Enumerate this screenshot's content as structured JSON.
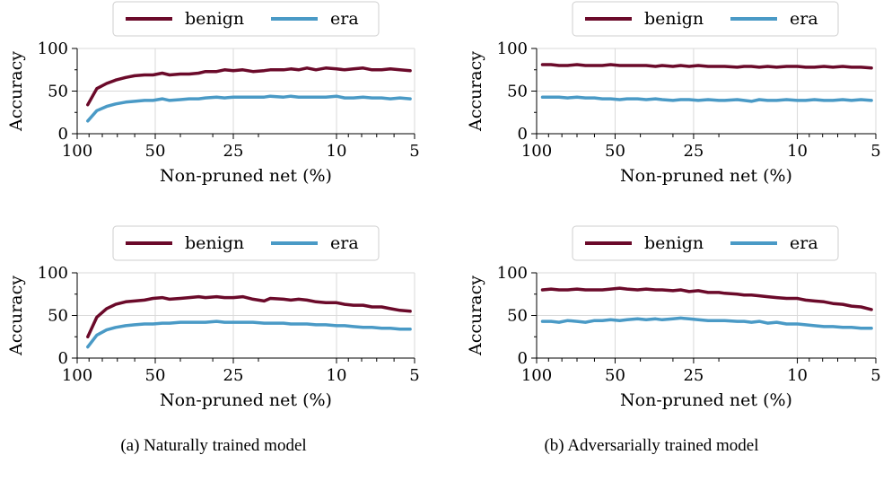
{
  "captions": [
    "(a) Naturally trained model",
    "(b) Adversarially trained model"
  ],
  "colors": {
    "benign": "#6b0a2a",
    "era": "#4a9ac6",
    "grid": "#d9d9d9"
  },
  "chart_data": [
    {
      "type": "line",
      "xlabel": "Non-pruned net (%)",
      "ylabel": "Accuracy",
      "xscale": "log",
      "xreversed": true,
      "xlim": [
        100,
        5
      ],
      "ylim": [
        0,
        100
      ],
      "xticks": [
        100,
        50,
        25,
        10,
        5
      ],
      "yticks": [
        0,
        50,
        100
      ],
      "grid": true,
      "legend": "top-center",
      "x": [
        91,
        84,
        77,
        71,
        65,
        60,
        55,
        51,
        47,
        44,
        40,
        37,
        34,
        32,
        29,
        27,
        25,
        23,
        21,
        19,
        18,
        16,
        15,
        14,
        13,
        12,
        11,
        10,
        9.3,
        8.6,
        7.9,
        7.3,
        6.7,
        6.2,
        5.7,
        5.2
      ],
      "series": [
        {
          "name": "benign",
          "values": [
            34,
            53,
            59,
            63,
            66,
            68,
            69,
            69,
            71,
            69,
            70,
            70,
            71,
            73,
            73,
            75,
            74,
            75,
            73,
            74,
            75,
            75,
            76,
            75,
            77,
            75,
            77,
            76,
            75,
            76,
            77,
            75,
            75,
            76,
            75,
            74
          ]
        },
        {
          "name": "era",
          "values": [
            15,
            27,
            32,
            35,
            37,
            38,
            39,
            39,
            41,
            39,
            40,
            41,
            41,
            42,
            43,
            42,
            43,
            43,
            43,
            43,
            44,
            43,
            44,
            43,
            43,
            43,
            43,
            44,
            42,
            42,
            43,
            42,
            42,
            41,
            42,
            41
          ]
        }
      ]
    },
    {
      "type": "line",
      "xlabel": "Non-pruned net (%)",
      "ylabel": "Accuracy",
      "xscale": "log",
      "xreversed": true,
      "xlim": [
        100,
        5
      ],
      "ylim": [
        0,
        100
      ],
      "xticks": [
        100,
        50,
        25,
        10,
        5
      ],
      "yticks": [
        0,
        50,
        100
      ],
      "grid": true,
      "legend": "top-center",
      "x": [
        95,
        88,
        82,
        76,
        70,
        65,
        60,
        56,
        52,
        48,
        45,
        41,
        38,
        35,
        33,
        30,
        28,
        26,
        24,
        22,
        20,
        19,
        17,
        16,
        15,
        14,
        13,
        12,
        11,
        10,
        9.3,
        8.6,
        7.9,
        7.3,
        6.7,
        6.2,
        5.7,
        5.2
      ],
      "series": [
        {
          "name": "benign",
          "values": [
            81,
            81,
            80,
            80,
            81,
            80,
            80,
            80,
            81,
            80,
            80,
            80,
            80,
            79,
            80,
            79,
            80,
            79,
            80,
            79,
            79,
            79,
            78,
            79,
            79,
            78,
            79,
            78,
            79,
            79,
            78,
            78,
            79,
            78,
            79,
            78,
            78,
            77
          ]
        },
        {
          "name": "era",
          "values": [
            43,
            43,
            43,
            42,
            43,
            42,
            42,
            41,
            41,
            40,
            41,
            41,
            40,
            41,
            40,
            39,
            40,
            40,
            39,
            40,
            39,
            39,
            40,
            39,
            38,
            40,
            39,
            39,
            40,
            39,
            39,
            40,
            39,
            39,
            40,
            39,
            40,
            39
          ]
        }
      ]
    },
    {
      "type": "line",
      "xlabel": "Non-pruned net (%)",
      "ylabel": "Accuracy",
      "xscale": "log",
      "xreversed": true,
      "xlim": [
        100,
        5
      ],
      "ylim": [
        0,
        100
      ],
      "xticks": [
        100,
        50,
        25,
        10,
        5
      ],
      "yticks": [
        0,
        50,
        100
      ],
      "grid": true,
      "legend": "top-center",
      "x": [
        91,
        84,
        77,
        71,
        65,
        60,
        55,
        51,
        47,
        44,
        40,
        37,
        34,
        32,
        29,
        27,
        25,
        23,
        21,
        19,
        18,
        16,
        15,
        14,
        13,
        12,
        11,
        10,
        9.3,
        8.6,
        7.9,
        7.3,
        6.7,
        6.2,
        5.7,
        5.2
      ],
      "series": [
        {
          "name": "benign",
          "values": [
            25,
            48,
            58,
            63,
            66,
            67,
            68,
            70,
            71,
            69,
            70,
            71,
            72,
            71,
            72,
            71,
            71,
            72,
            69,
            67,
            70,
            69,
            68,
            69,
            68,
            66,
            65,
            65,
            63,
            62,
            62,
            60,
            60,
            58,
            56,
            55
          ]
        },
        {
          "name": "era",
          "values": [
            13,
            27,
            33,
            36,
            38,
            39,
            40,
            40,
            41,
            41,
            42,
            42,
            42,
            42,
            43,
            42,
            42,
            42,
            42,
            41,
            41,
            41,
            40,
            40,
            40,
            39,
            39,
            38,
            38,
            37,
            36,
            36,
            35,
            35,
            34,
            34
          ]
        }
      ]
    },
    {
      "type": "line",
      "xlabel": "Non-pruned net (%)",
      "ylabel": "Accuracy",
      "xscale": "log",
      "xreversed": true,
      "xlim": [
        100,
        5
      ],
      "ylim": [
        0,
        100
      ],
      "xticks": [
        100,
        50,
        25,
        10,
        5
      ],
      "yticks": [
        0,
        50,
        100
      ],
      "grid": true,
      "legend": "top-center",
      "x": [
        95,
        88,
        82,
        76,
        70,
        65,
        60,
        56,
        52,
        48,
        45,
        41,
        38,
        35,
        33,
        30,
        28,
        26,
        24,
        22,
        20,
        19,
        17,
        16,
        15,
        14,
        13,
        12,
        11,
        10,
        9.3,
        8.6,
        7.9,
        7.3,
        6.7,
        6.2,
        5.7,
        5.2
      ],
      "series": [
        {
          "name": "benign",
          "values": [
            80,
            81,
            80,
            80,
            81,
            80,
            80,
            80,
            81,
            82,
            81,
            80,
            81,
            80,
            80,
            79,
            80,
            78,
            79,
            77,
            77,
            76,
            75,
            74,
            74,
            73,
            72,
            71,
            70,
            70,
            68,
            67,
            66,
            64,
            63,
            61,
            60,
            57
          ]
        },
        {
          "name": "era",
          "values": [
            43,
            43,
            42,
            44,
            43,
            42,
            44,
            44,
            45,
            44,
            45,
            46,
            45,
            46,
            45,
            46,
            47,
            46,
            45,
            44,
            44,
            44,
            43,
            43,
            42,
            43,
            41,
            42,
            40,
            40,
            39,
            38,
            37,
            37,
            36,
            36,
            35,
            35
          ]
        }
      ]
    }
  ]
}
